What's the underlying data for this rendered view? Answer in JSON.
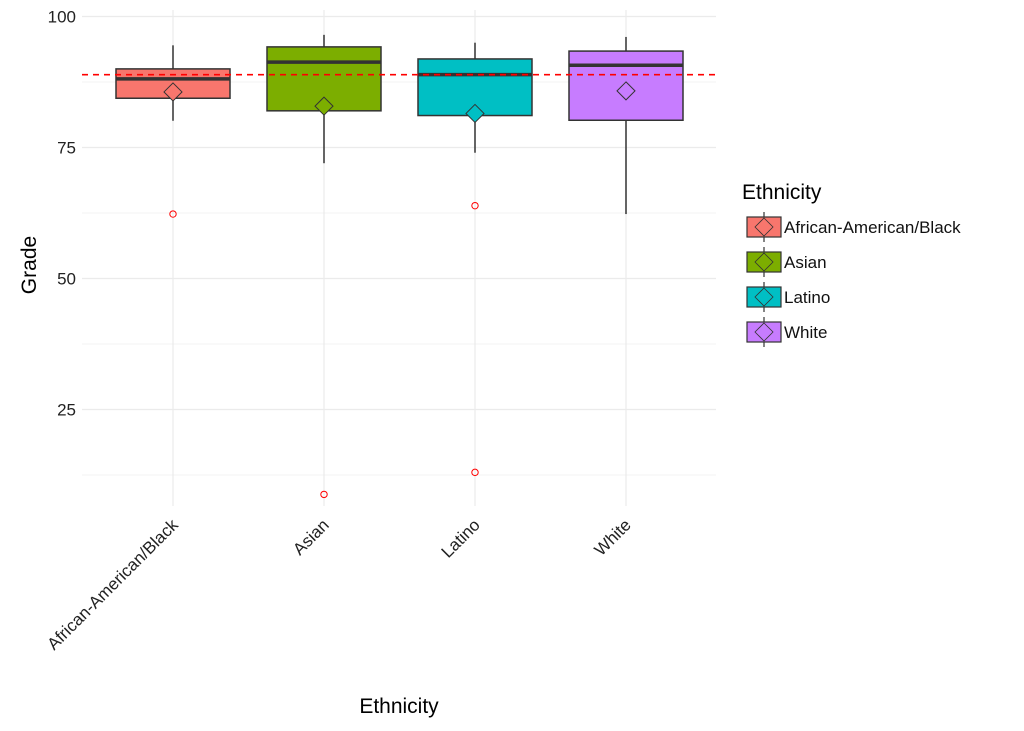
{
  "chart_data": {
    "type": "boxplot",
    "title": "",
    "xlabel": "Ethnicity",
    "ylabel": "Grade",
    "ylim": [
      5,
      101
    ],
    "yticks": [
      25,
      50,
      75,
      100
    ],
    "grid": true,
    "reference_line": {
      "value": 88.9,
      "style": "dashed",
      "color": "#FF0000"
    },
    "categories": [
      "African-American/Black",
      "Asian",
      "Latino",
      "White"
    ],
    "series": [
      {
        "name": "African-American/Black",
        "color": "#F8766D",
        "whisker_low": 80.1,
        "q1": 84.4,
        "median": 88.1,
        "q3": 90.0,
        "whisker_high": 94.5,
        "mean": 85.6,
        "outliers": [
          62.3
        ]
      },
      {
        "name": "Asian",
        "color": "#7CAE00",
        "whisker_low": 72.0,
        "q1": 82.0,
        "median": 91.3,
        "q3": 94.2,
        "whisker_high": 96.5,
        "mean": 82.9,
        "outliers": [
          8.8
        ]
      },
      {
        "name": "Latino",
        "color": "#00BFC4",
        "whisker_low": 74.0,
        "q1": 81.1,
        "median": 88.9,
        "q3": 91.9,
        "whisker_high": 95.0,
        "mean": 81.5,
        "outliers": [
          63.9,
          13.0
        ]
      },
      {
        "name": "White",
        "color": "#C77CFF",
        "whisker_low": 62.3,
        "q1": 80.2,
        "median": 90.7,
        "q3": 93.4,
        "whisker_high": 96.1,
        "mean": 85.8,
        "outliers": []
      }
    ],
    "outlier_color": "#FF0000",
    "legend": {
      "title": "Ethnicity",
      "position": "right",
      "entries": [
        "African-American/Black",
        "Asian",
        "Latino",
        "White"
      ]
    }
  }
}
